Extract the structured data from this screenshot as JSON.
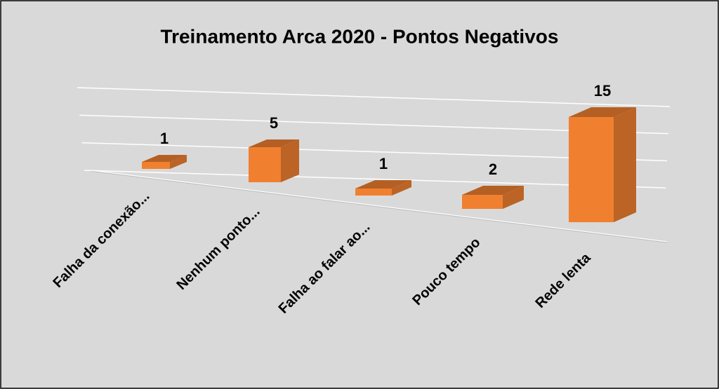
{
  "chart_data": {
    "type": "bar3d",
    "title": "Treinamento Arca 2020 - Pontos Negativos",
    "categories": [
      "Falha da conexão...",
      "Nenhum ponto...",
      "Falha ao falar ao...",
      "Pouco tempo",
      "Rede lenta"
    ],
    "values": [
      1,
      5,
      1,
      2,
      15
    ],
    "color": "#f08030",
    "ylim": [
      0,
      15
    ],
    "yticks": [
      0,
      5,
      10,
      15
    ],
    "grid": true
  }
}
